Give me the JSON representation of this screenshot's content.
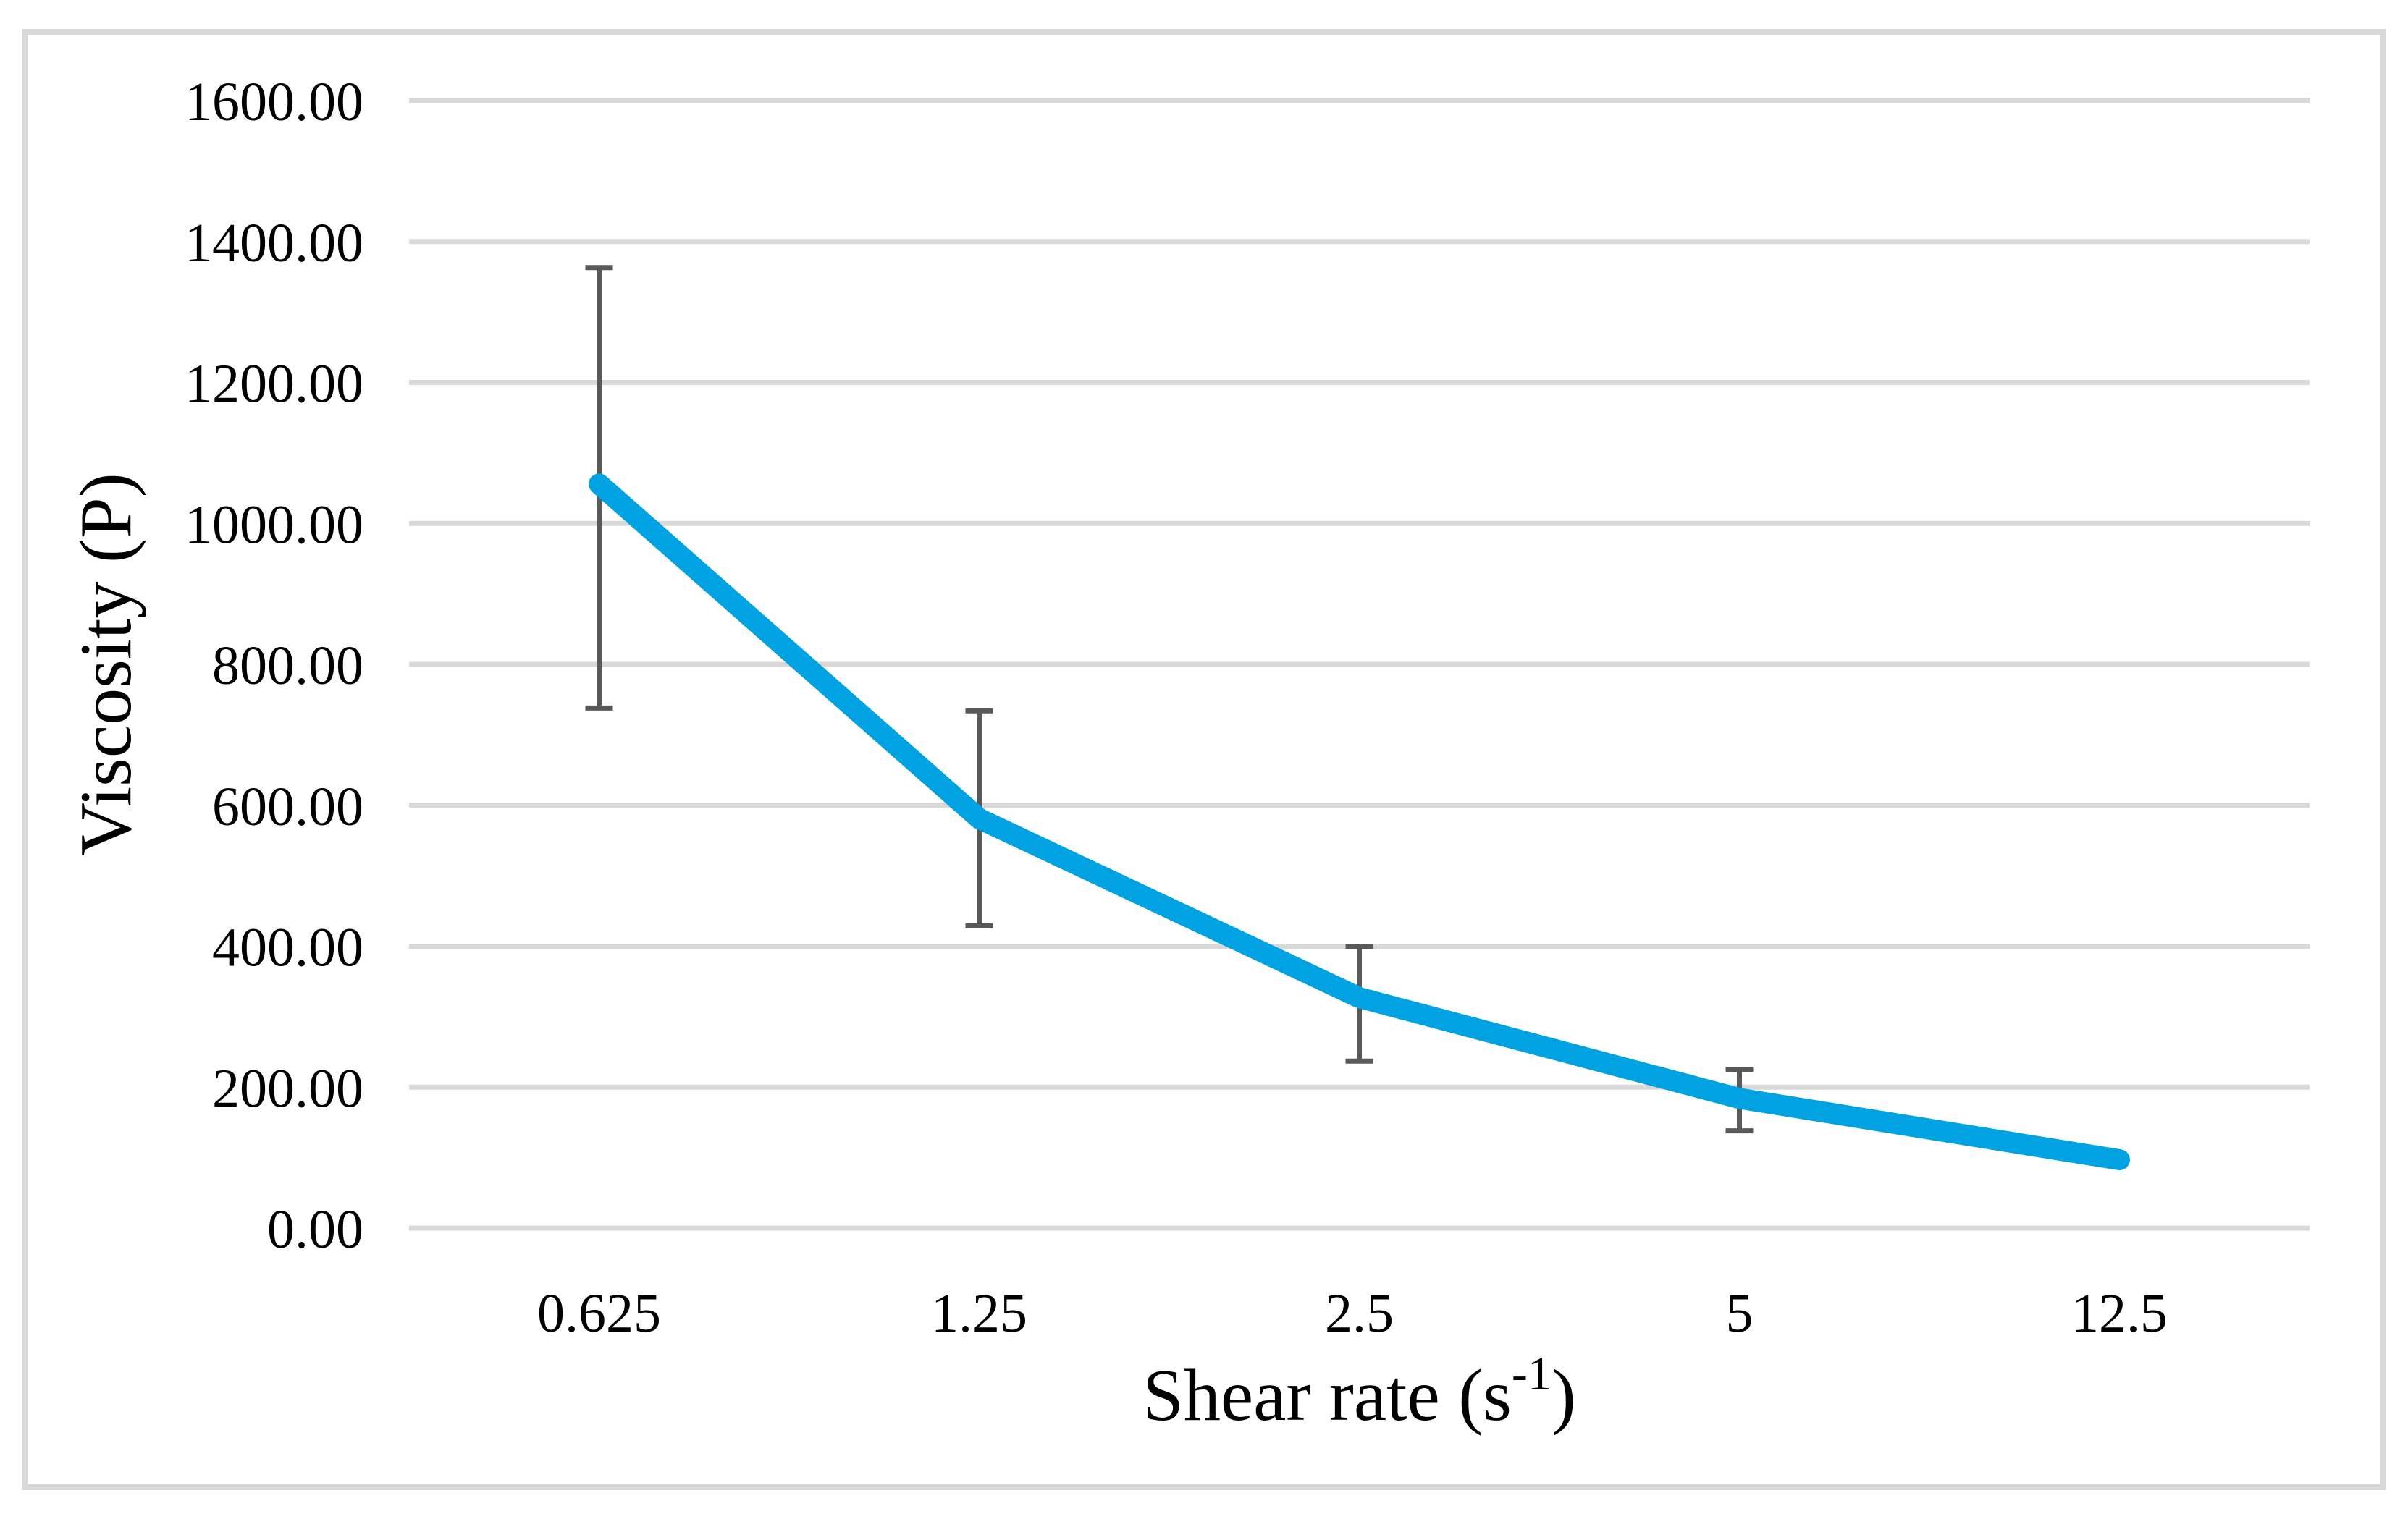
{
  "figure": {
    "background_color": "#FFFFFF",
    "border_color": "#D9D9D9"
  },
  "chart_data": {
    "type": "line",
    "title": "",
    "categories": [
      "0.625",
      "1.25",
      "2.5",
      "5",
      "12.5"
    ],
    "series": [
      {
        "name": "Viscosity",
        "values": [
          1056,
          581,
          327,
          184,
          97
        ],
        "error_bars": {
          "upper": [
            1363,
            734,
            400,
            225,
            null
          ],
          "lower": [
            738,
            429,
            237,
            138,
            null
          ]
        },
        "color": "#00A2E1"
      }
    ],
    "xlabel": "Shear rate (s^-1)",
    "xlabel_parts": {
      "pre": "Shear rate (s",
      "sup": "-1",
      "post": ")"
    },
    "ylabel": "Viscosity (P)",
    "ylim": [
      0,
      1600
    ],
    "ytick_step": 200,
    "ytick_labels": [
      "0.00",
      "200.00",
      "400.00",
      "600.00",
      "800.00",
      "1000.00",
      "1200.00",
      "1400.00",
      "1600.00"
    ],
    "grid": "horizontal",
    "gridline_color": "#D9D9D9",
    "error_bar_color": "#595959",
    "legend": "none",
    "marker": "none"
  }
}
